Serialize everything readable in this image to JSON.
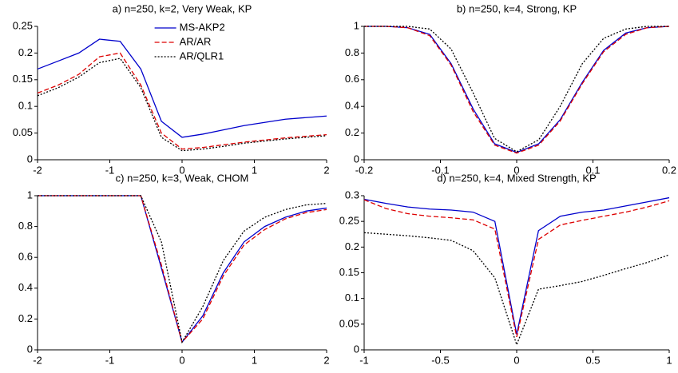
{
  "chart_data": [
    {
      "type": "line",
      "title": "a) n=250, k=2, Very Weak, KP",
      "x": [
        -2,
        -1.714,
        -1.429,
        -1.143,
        -0.857,
        -0.571,
        -0.286,
        0,
        0.286,
        0.571,
        0.857,
        1.143,
        1.429,
        1.714,
        2
      ],
      "series": [
        {
          "name": "MS-AKP2",
          "color": "#0000cc",
          "dash": "solid",
          "values": [
            0.17,
            0.185,
            0.2,
            0.226,
            0.222,
            0.17,
            0.072,
            0.042,
            0.048,
            0.056,
            0.064,
            0.07,
            0.076,
            0.079,
            0.082
          ]
        },
        {
          "name": "AR/AR",
          "color": "#dd0000",
          "dash": "dashed",
          "values": [
            0.125,
            0.14,
            0.16,
            0.193,
            0.2,
            0.14,
            0.05,
            0.02,
            0.023,
            0.028,
            0.033,
            0.037,
            0.041,
            0.044,
            0.047
          ]
        },
        {
          "name": "AR/QLR1",
          "color": "#000000",
          "dash": "dotted",
          "values": [
            0.12,
            0.135,
            0.155,
            0.182,
            0.19,
            0.135,
            0.042,
            0.017,
            0.02,
            0.025,
            0.031,
            0.035,
            0.039,
            0.042,
            0.045
          ]
        }
      ],
      "legend": "upper center",
      "xlim": [
        -2,
        2
      ],
      "xticks": [
        -2,
        -1,
        0,
        1,
        2
      ],
      "ylim": [
        0,
        0.25
      ],
      "yticks": [
        0,
        0.05,
        0.1,
        0.15,
        0.2,
        0.25
      ]
    },
    {
      "type": "line",
      "title": "b) n=250, k=4, Strong, KP",
      "x": [
        -0.2,
        -0.171,
        -0.143,
        -0.114,
        -0.086,
        -0.057,
        -0.029,
        0,
        0.029,
        0.057,
        0.086,
        0.114,
        0.143,
        0.171,
        0.2
      ],
      "series": [
        {
          "color": "#0000cc",
          "dash": "solid",
          "values": [
            1,
            1,
            0.99,
            0.94,
            0.72,
            0.38,
            0.12,
            0.055,
            0.12,
            0.3,
            0.58,
            0.82,
            0.95,
            0.99,
            1
          ]
        },
        {
          "color": "#dd0000",
          "dash": "dashed",
          "values": [
            1,
            1,
            0.99,
            0.93,
            0.71,
            0.36,
            0.11,
            0.05,
            0.11,
            0.29,
            0.57,
            0.81,
            0.94,
            0.99,
            1
          ]
        },
        {
          "color": "#000000",
          "dash": "dotted",
          "values": [
            1,
            1,
            1,
            0.98,
            0.83,
            0.5,
            0.16,
            0.06,
            0.15,
            0.4,
            0.72,
            0.91,
            0.98,
            1,
            1
          ]
        }
      ],
      "xlim": [
        -0.2,
        0.2
      ],
      "xticks": [
        -0.2,
        -0.1,
        0,
        0.1,
        0.2
      ],
      "ylim": [
        0,
        1
      ],
      "yticks": [
        0,
        0.2,
        0.4,
        0.6,
        0.8,
        1
      ]
    },
    {
      "type": "line",
      "title": "c) n=250, k=3, Weak, CHOM",
      "x": [
        -2,
        -1.714,
        -1.429,
        -1.143,
        -0.857,
        -0.571,
        -0.286,
        0,
        0.286,
        0.571,
        0.857,
        1.143,
        1.429,
        1.714,
        2
      ],
      "series": [
        {
          "color": "#0000cc",
          "dash": "solid",
          "values": [
            1,
            1,
            1,
            1,
            1,
            1,
            0.53,
            0.05,
            0.22,
            0.5,
            0.7,
            0.8,
            0.86,
            0.9,
            0.92
          ]
        },
        {
          "color": "#dd0000",
          "dash": "dashed",
          "values": [
            1,
            1,
            1,
            1,
            1,
            1,
            0.55,
            0.05,
            0.2,
            0.48,
            0.68,
            0.78,
            0.85,
            0.89,
            0.91
          ]
        },
        {
          "color": "#000000",
          "dash": "dotted",
          "values": [
            1,
            1,
            1,
            1,
            1,
            1,
            0.7,
            0.05,
            0.28,
            0.58,
            0.77,
            0.86,
            0.91,
            0.94,
            0.95
          ]
        }
      ],
      "xlim": [
        -2,
        2
      ],
      "xticks": [
        -2,
        -1,
        0,
        1,
        2
      ],
      "ylim": [
        0,
        1
      ],
      "yticks": [
        0,
        0.2,
        0.4,
        0.6,
        0.8,
        1
      ]
    },
    {
      "type": "line",
      "title": "d) n=250, k=4, Mixed Strength, KP",
      "x": [
        -1,
        -0.857,
        -0.714,
        -0.571,
        -0.429,
        -0.286,
        -0.143,
        0,
        0.143,
        0.286,
        0.429,
        0.571,
        0.714,
        0.857,
        1
      ],
      "series": [
        {
          "color": "#0000cc",
          "dash": "solid",
          "values": [
            0.293,
            0.285,
            0.278,
            0.274,
            0.272,
            0.268,
            0.25,
            0.03,
            0.232,
            0.26,
            0.268,
            0.272,
            0.28,
            0.288,
            0.296
          ]
        },
        {
          "color": "#dd0000",
          "dash": "dashed",
          "values": [
            0.292,
            0.275,
            0.265,
            0.26,
            0.257,
            0.253,
            0.235,
            0.025,
            0.215,
            0.243,
            0.252,
            0.26,
            0.268,
            0.278,
            0.29
          ]
        },
        {
          "color": "#000000",
          "dash": "dotted",
          "values": [
            0.228,
            0.225,
            0.222,
            0.218,
            0.213,
            0.193,
            0.14,
            0.01,
            0.118,
            0.125,
            0.133,
            0.145,
            0.158,
            0.17,
            0.185
          ]
        }
      ],
      "xlim": [
        -1,
        1
      ],
      "xticks": [
        -1,
        -0.5,
        0,
        0.5,
        1
      ],
      "ylim": [
        0,
        0.3
      ],
      "yticks": [
        0,
        0.05,
        0.1,
        0.15,
        0.2,
        0.25,
        0.3
      ]
    }
  ]
}
